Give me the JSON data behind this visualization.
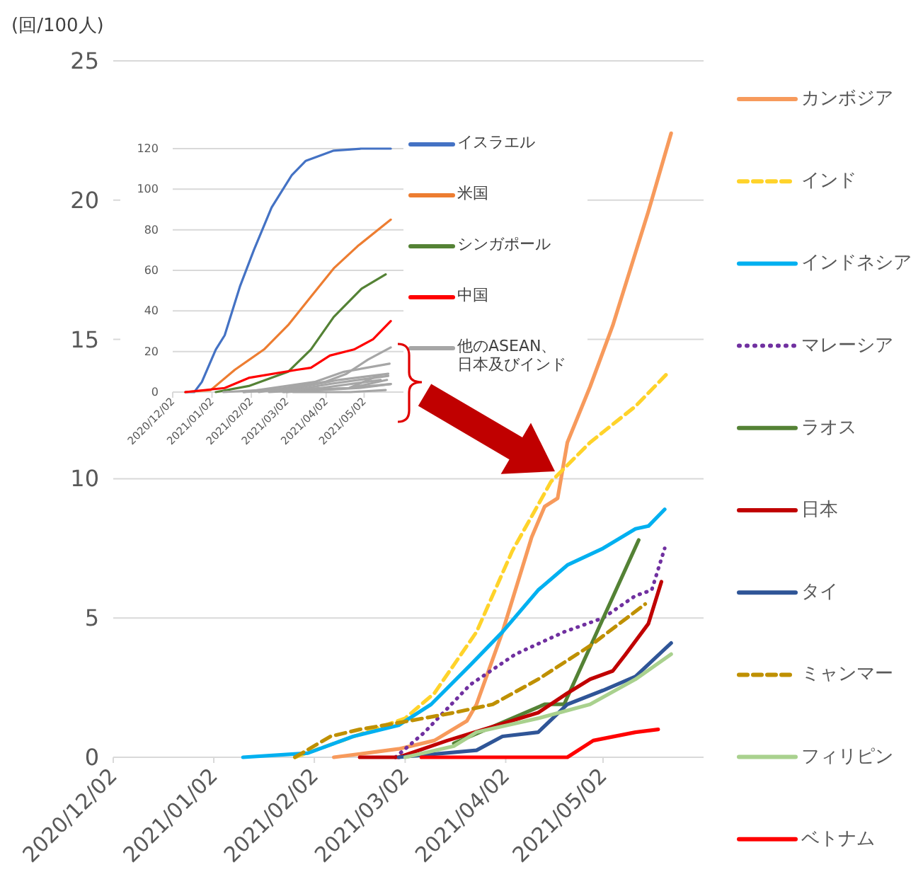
{
  "chart_data": [
    {
      "type": "line",
      "ylabel": "(回/100人)",
      "ylim": [
        0,
        25
      ],
      "yticks": [
        0,
        5,
        10,
        15,
        20,
        25
      ],
      "xlim": [
        "2020-12-02",
        "2021-06-02"
      ],
      "xticks": [
        {
          "value": "2020-12-02",
          "label": "2020/12/02"
        },
        {
          "value": "2021-01-02",
          "label": "2021/01/02"
        },
        {
          "value": "2021-02-02",
          "label": "2021/02/02"
        },
        {
          "value": "2021-03-02",
          "label": "2021/03/02"
        },
        {
          "value": "2021-04-02",
          "label": "2021/04/02"
        },
        {
          "value": "2021-05-02",
          "label": "2021/05/02"
        }
      ],
      "grid": "y",
      "legend": "right",
      "marker": "none",
      "series": [
        {
          "name": "カンボジア",
          "color": "#f79a5c",
          "x": [
            "2021-02-08",
            "2021-02-28",
            "2021-03-11",
            "2021-03-21",
            "2021-03-24",
            "2021-04-01",
            "2021-04-10",
            "2021-04-14",
            "2021-04-18",
            "2021-04-21",
            "2021-04-28",
            "2021-05-05",
            "2021-05-16",
            "2021-05-23"
          ],
          "values": [
            0,
            0.3,
            0.6,
            1.3,
            1.9,
            4.5,
            7.9,
            9.0,
            9.3,
            11.3,
            13.3,
            15.5,
            19.6,
            22.4
          ]
        },
        {
          "name": "インド",
          "color": "#ffd32a",
          "line_style": "dashed",
          "x": [
            "2021-01-27",
            "2021-03-02",
            "2021-03-11",
            "2021-03-24",
            "2021-04-04",
            "2021-04-16",
            "2021-04-28",
            "2021-05-12",
            "2021-05-22"
          ],
          "values": [
            0,
            1.4,
            2.3,
            4.5,
            7.4,
            9.9,
            11.3,
            12.6,
            13.8
          ]
        },
        {
          "name": "インドネシア",
          "color": "#00b0f0",
          "x": [
            "2021-01-11",
            "2021-01-31",
            "2021-02-14",
            "2021-02-28",
            "2021-03-10",
            "2021-03-22",
            "2021-04-01",
            "2021-04-12",
            "2021-04-21",
            "2021-05-02",
            "2021-05-12",
            "2021-05-16",
            "2021-05-21"
          ],
          "values": [
            0,
            0.15,
            0.75,
            1.15,
            1.9,
            3.3,
            4.5,
            6.0,
            6.9,
            7.5,
            8.2,
            8.3,
            8.9
          ]
        },
        {
          "name": "マレーシア",
          "color": "#7030a0",
          "line_style": "dotted",
          "x": [
            "2021-02-27",
            "2021-03-08",
            "2021-03-22",
            "2021-04-05",
            "2021-04-20",
            "2021-05-02",
            "2021-05-12",
            "2021-05-17",
            "2021-05-21"
          ],
          "values": [
            0,
            0.9,
            2.6,
            3.7,
            4.5,
            5.0,
            5.8,
            6.0,
            7.5
          ]
        },
        {
          "name": "ラオス",
          "color": "#548235",
          "x": [
            "2021-03-17",
            "2021-04-14",
            "2021-04-20",
            "2021-05-13"
          ],
          "values": [
            0.5,
            1.9,
            1.9,
            7.8
          ]
        },
        {
          "name": "日本",
          "color": "#c00000",
          "x": [
            "2021-02-16",
            "2021-02-28",
            "2021-03-15",
            "2021-03-29",
            "2021-04-12",
            "2021-04-21",
            "2021-04-28",
            "2021-05-05",
            "2021-05-09",
            "2021-05-16",
            "2021-05-20"
          ],
          "values": [
            0,
            0,
            0.6,
            1.1,
            1.6,
            2.3,
            2.8,
            3.1,
            3.7,
            4.8,
            6.3
          ]
        },
        {
          "name": "タイ",
          "color": "#2f5597",
          "x": [
            "2021-02-28",
            "2021-03-24",
            "2021-04-01",
            "2021-04-12",
            "2021-04-21",
            "2021-05-02",
            "2021-05-12",
            "2021-05-23"
          ],
          "values": [
            0,
            0.25,
            0.75,
            0.9,
            1.9,
            2.4,
            2.9,
            4.1
          ]
        },
        {
          "name": "ミャンマー",
          "color": "#bf9000",
          "line_style": "dashed",
          "x": [
            "2021-01-27",
            "2021-02-07",
            "2021-02-16",
            "2021-03-03",
            "2021-03-17",
            "2021-03-29",
            "2021-04-12",
            "2021-04-28",
            "2021-05-15"
          ],
          "values": [
            0,
            0.75,
            1.0,
            1.3,
            1.6,
            1.9,
            2.8,
            4.0,
            5.5
          ]
        },
        {
          "name": "フィリピン",
          "color": "#a9d18e",
          "x": [
            "2021-03-02",
            "2021-03-17",
            "2021-03-24",
            "2021-04-12",
            "2021-04-28",
            "2021-05-12",
            "2021-05-23"
          ],
          "values": [
            0,
            0.4,
            0.9,
            1.4,
            1.9,
            2.8,
            3.7
          ]
        },
        {
          "name": "ベトナム",
          "color": "#ff0000",
          "x": [
            "2021-03-07",
            "2021-04-21",
            "2021-04-29",
            "2021-05-12",
            "2021-05-19"
          ],
          "values": [
            0,
            0,
            0.6,
            0.9,
            1.0
          ]
        }
      ]
    },
    {
      "type": "line",
      "ylim": [
        0,
        120
      ],
      "yticks": [
        0,
        20,
        40,
        60,
        80,
        100,
        120
      ],
      "xlim": [
        "2020-12-02",
        "2021-06-02"
      ],
      "xticks": [
        {
          "value": "2020-12-02",
          "label": "2020/12/02"
        },
        {
          "value": "2021-01-02",
          "label": "2021/01/02"
        },
        {
          "value": "2021-02-02",
          "label": "2021/02/02"
        },
        {
          "value": "2021-03-02",
          "label": "2021/03/02"
        },
        {
          "value": "2021-04-02",
          "label": "2021/04/02"
        },
        {
          "value": "2021-05-02",
          "label": "2021/05/02"
        }
      ],
      "grid": "y",
      "legend": "right",
      "marker": "none",
      "series": [
        {
          "name": "イスラエル",
          "color": "#4472c4",
          "x": [
            "2020-12-12",
            "2020-12-19",
            "2020-12-25",
            "2021-01-05",
            "2021-01-12",
            "2021-01-24",
            "2021-02-04",
            "2021-02-18",
            "2021-03-06",
            "2021-03-17",
            "2021-04-08",
            "2021-04-30",
            "2021-05-23"
          ],
          "values": [
            0,
            0,
            5,
            21,
            28,
            52,
            70,
            91,
            107,
            114,
            119,
            120,
            120
          ]
        },
        {
          "name": "米国",
          "color": "#ed7d31",
          "x": [
            "2020-12-12",
            "2021-01-01",
            "2021-01-20",
            "2021-02-12",
            "2021-03-03",
            "2021-03-21",
            "2021-04-08",
            "2021-04-27",
            "2021-05-23"
          ],
          "values": [
            0,
            1,
            11,
            21,
            33,
            47,
            61,
            72,
            85
          ]
        },
        {
          "name": "シンガポール",
          "color": "#548235",
          "x": [
            "2021-01-05",
            "2021-01-31",
            "2021-03-03",
            "2021-03-21",
            "2021-04-08",
            "2021-04-30",
            "2021-05-19"
          ],
          "values": [
            0,
            3,
            10,
            21,
            37,
            51,
            58
          ]
        },
        {
          "name": "中国",
          "color": "#ff0000",
          "x": [
            "2020-12-12",
            "2021-01-12",
            "2021-01-31",
            "2021-03-10",
            "2021-03-21",
            "2021-04-05",
            "2021-04-24",
            "2021-05-09",
            "2021-05-23"
          ],
          "values": [
            0,
            2,
            7,
            11,
            12,
            18,
            21,
            26,
            35
          ]
        },
        {
          "name": "他のASEAN、日本及びインド",
          "color": "#a6a6a6",
          "x": [
            "2021-02-08",
            "2021-04-01",
            "2021-04-18",
            "2021-05-05",
            "2021-05-23"
          ],
          "values": [
            0,
            5,
            9,
            16,
            22
          ]
        },
        {
          "color": "#a6a6a6",
          "x": [
            "2021-01-27",
            "2021-03-24",
            "2021-04-16",
            "2021-05-22"
          ],
          "values": [
            0,
            5,
            10,
            14
          ]
        },
        {
          "color": "#a6a6a6",
          "x": [
            "2021-01-11",
            "2021-03-10",
            "2021-04-12",
            "2021-05-21"
          ],
          "values": [
            0,
            2,
            6,
            9
          ]
        },
        {
          "color": "#a6a6a6",
          "x": [
            "2021-02-27",
            "2021-04-05",
            "2021-05-21"
          ],
          "values": [
            0,
            4,
            8
          ]
        },
        {
          "color": "#a6a6a6",
          "x": [
            "2021-03-17",
            "2021-04-20",
            "2021-05-13"
          ],
          "values": [
            1,
            2,
            8
          ]
        },
        {
          "color": "#a6a6a6",
          "x": [
            "2021-02-16",
            "2021-04-21",
            "2021-05-20"
          ],
          "values": [
            0,
            2,
            6
          ]
        },
        {
          "color": "#a6a6a6",
          "x": [
            "2021-02-28",
            "2021-04-21",
            "2021-05-23"
          ],
          "values": [
            0,
            2,
            4
          ]
        },
        {
          "color": "#a6a6a6",
          "x": [
            "2021-01-27",
            "2021-03-29",
            "2021-05-15"
          ],
          "values": [
            0,
            2,
            6
          ]
        },
        {
          "color": "#a6a6a6",
          "x": [
            "2021-03-02",
            "2021-04-28",
            "2021-05-23"
          ],
          "values": [
            0,
            2,
            4
          ]
        },
        {
          "color": "#a6a6a6",
          "x": [
            "2021-03-07",
            "2021-04-21",
            "2021-05-19"
          ],
          "values": [
            0,
            0,
            1
          ]
        }
      ]
    }
  ]
}
